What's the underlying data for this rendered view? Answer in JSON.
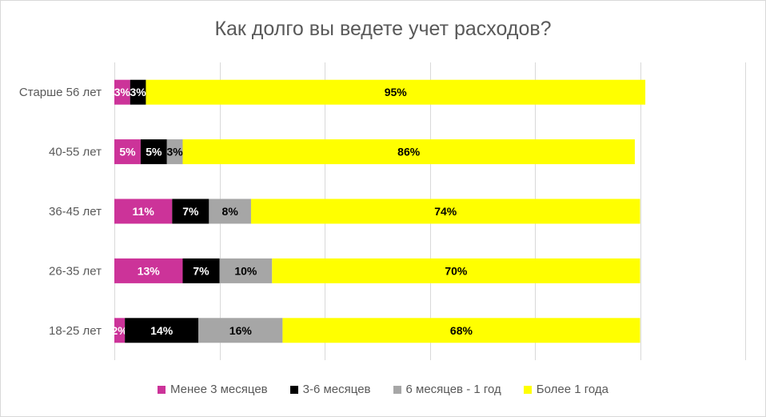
{
  "chart_data": {
    "type": "bar",
    "orientation": "horizontal",
    "stacked": true,
    "title": "Как долго вы ведете учет расходов?",
    "categories": [
      "Старше 56 лет",
      "40-55 лет",
      "36-45 лет",
      "26-35 лет",
      "18-25 лет"
    ],
    "series": [
      {
        "name": "Менее 3 месяцев",
        "color": "#cc3399",
        "label_color": "#ffffff",
        "values": [
          3,
          5,
          11,
          13,
          2
        ]
      },
      {
        "name": "3-6 месяцев",
        "color": "#000000",
        "label_color": "#ffffff",
        "values": [
          3,
          5,
          7,
          7,
          14
        ]
      },
      {
        "name": "6 месяцев - 1 год",
        "color": "#a6a6a6",
        "label_color": "#000000",
        "values": [
          0,
          3,
          8,
          10,
          16
        ]
      },
      {
        "name": "Более 1 года",
        "color": "#ffff00",
        "label_color": "#000000",
        "values": [
          95,
          86,
          74,
          70,
          68
        ]
      }
    ],
    "xlim": [
      0,
      120
    ],
    "grid": true,
    "legend_position": "bottom",
    "value_format": "percent"
  }
}
